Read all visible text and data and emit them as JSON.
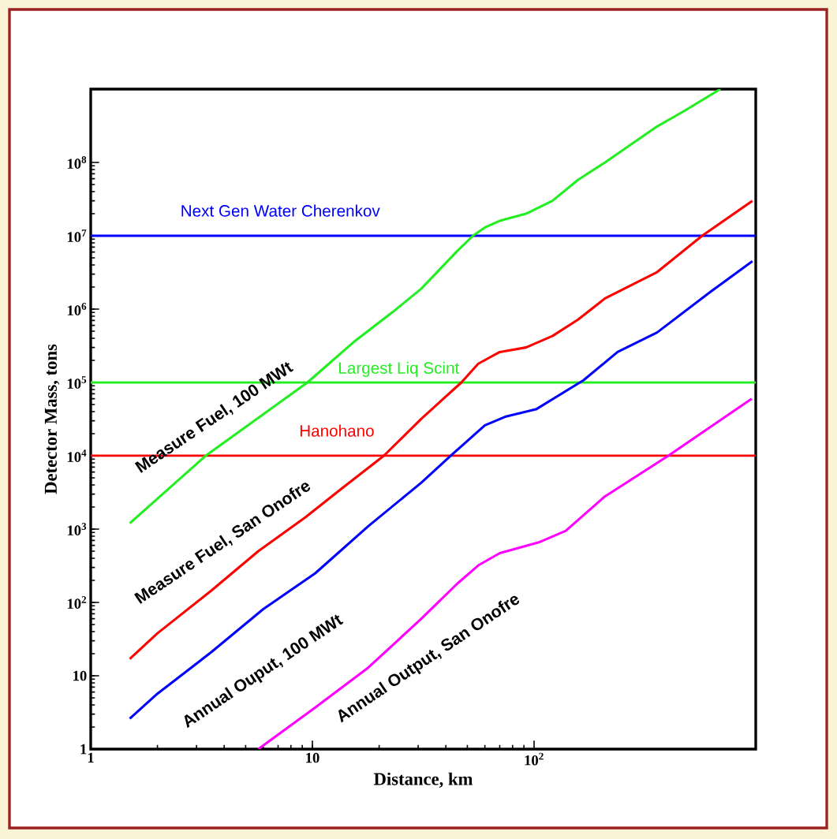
{
  "chart_data": {
    "type": "line",
    "xlabel": "Distance, km",
    "ylabel": "Detector Mass, tons",
    "log": "xy",
    "xlim": [
      1,
      1000
    ],
    "ylim": [
      1,
      1000000000
    ],
    "xticks": [
      1,
      10,
      {
        "value": 100,
        "label": "10$^{2}$"
      }
    ],
    "yticks": [
      1,
      10,
      {
        "value": 100,
        "label": "10$^{2}$"
      },
      {
        "value": 1000,
        "label": "10$^{3}$"
      },
      {
        "value": 10000,
        "label": "10$^{4}$"
      },
      {
        "value": 100000,
        "label": "10$^{5}$"
      },
      {
        "value": 1000000,
        "label": "10$^{6}$"
      },
      {
        "value": 10000000,
        "label": "10$^{7}$"
      },
      {
        "value": 100000000,
        "label": "10$^{8}$"
      }
    ],
    "series": [
      {
        "name": "Measure Fuel, 100 MWt",
        "color": "#22ee22",
        "x": [
          1.5,
          3.3,
          9.5,
          15.6,
          23,
          31,
          45,
          53,
          60,
          70,
          92,
          121,
          158,
          209,
          359,
          474,
          692
        ],
        "values": [
          1200,
          10000,
          100000,
          370000,
          910000,
          1900000,
          6200000,
          10000000,
          13000000,
          16000000,
          20000000,
          30000000,
          58000000,
          100000000,
          310000000,
          500000000,
          1000000000
        ]
      },
      {
        "name": "Measure Fuel, San Onofre",
        "color": "#ff0000",
        "x": [
          1.5,
          2.0,
          3.5,
          5.7,
          9.3,
          13.6,
          21,
          31,
          47,
          56,
          70,
          92,
          121,
          158,
          209,
          359,
          573,
          966
        ],
        "values": [
          17,
          38,
          145,
          500,
          1450,
          3600,
          10000,
          32000,
          100000,
          180000,
          260000,
          300000,
          430000,
          720000,
          1400000,
          3200000,
          10000000,
          30000000
        ]
      },
      {
        "name": "Annual Ouput, 100 MWt",
        "color": "#0000ff",
        "x": [
          1.5,
          2.0,
          3.5,
          6.0,
          10.3,
          17.9,
          31,
          42,
          60,
          74,
          102,
          167,
          238,
          359,
          622,
          966
        ],
        "values": [
          2.6,
          5.7,
          21,
          81,
          250,
          1100,
          4300,
          10000,
          26000,
          34000,
          43000,
          107000,
          260000,
          480000,
          1700000,
          4500000
        ]
      },
      {
        "name": "Annual Output, San Onofre",
        "color": "#ff00ff",
        "x": [
          5.7,
          10.3,
          17.9,
          31,
          45,
          56,
          70,
          105,
          139,
          209,
          403,
          959
        ],
        "values": [
          1,
          3.7,
          13,
          60,
          180,
          320,
          470,
          660,
          950,
          2800,
          10000,
          60000
        ]
      }
    ],
    "ref_lines": [
      {
        "axis": "y",
        "value": 10000000,
        "label": "Next Gen Water Cherenkov",
        "color": "#0000ff"
      },
      {
        "axis": "y",
        "value": 100000,
        "label": "Largest Liq Scint",
        "color": "#22ee22"
      },
      {
        "axis": "y",
        "value": 10000,
        "label": "Hanohano",
        "color": "#ff0000"
      }
    ]
  }
}
